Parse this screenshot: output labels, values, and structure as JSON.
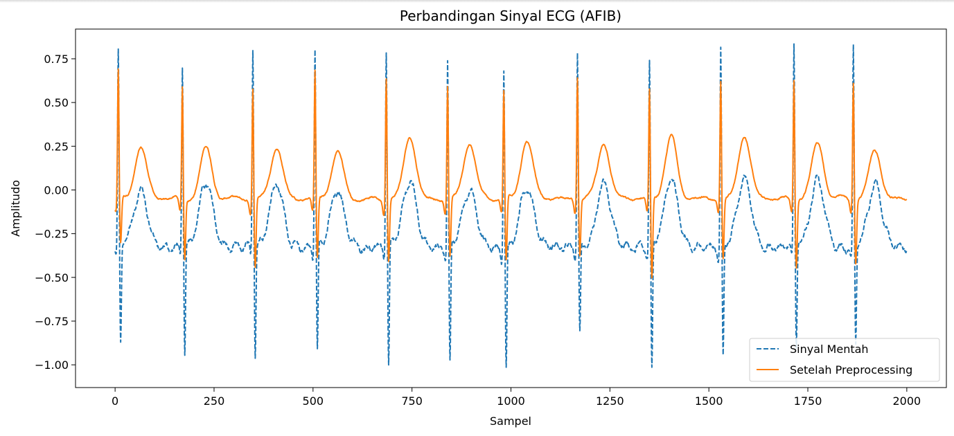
{
  "chart_data": {
    "type": "line",
    "title": "Perbandingan Sinyal ECG (AFIB)",
    "xlabel": "Sampel",
    "ylabel": "Amplitudo",
    "xlim": [
      -100,
      2100
    ],
    "ylim": [
      -1.13,
      0.92
    ],
    "xticks": [
      0,
      250,
      500,
      750,
      1000,
      1250,
      1500,
      1750,
      2000
    ],
    "xtick_labels": [
      "0",
      "250",
      "500",
      "750",
      "1000",
      "1250",
      "1500",
      "1750",
      "2000"
    ],
    "yticks": [
      0.75,
      0.5,
      0.25,
      0.0,
      -0.25,
      -0.5,
      -0.75,
      -1.0
    ],
    "ytick_labels": [
      "0.75",
      "0.50",
      "0.25",
      "0.00",
      "−0.25",
      "−0.50",
      "−0.75",
      "−1.00"
    ],
    "grid": false,
    "legend_position": "lower-right",
    "beats": [
      {
        "x": 8,
        "raw_peak": 0.79,
        "raw_min": -0.87,
        "clean_peak": 0.7,
        "clean_min": -0.32
      },
      {
        "x": 170,
        "raw_peak": 0.72,
        "raw_min": -0.92,
        "clean_peak": 0.61,
        "clean_min": -0.4
      },
      {
        "x": 348,
        "raw_peak": 0.8,
        "raw_min": -0.93,
        "clean_peak": 0.6,
        "clean_min": -0.45
      },
      {
        "x": 505,
        "raw_peak": 0.82,
        "raw_min": -0.9,
        "clean_peak": 0.69,
        "clean_min": -0.4
      },
      {
        "x": 685,
        "raw_peak": 0.79,
        "raw_min": -1.02,
        "clean_peak": 0.68,
        "clean_min": -0.4
      },
      {
        "x": 840,
        "raw_peak": 0.75,
        "raw_min": -1.0,
        "clean_peak": 0.61,
        "clean_min": -0.39
      },
      {
        "x": 982,
        "raw_peak": 0.73,
        "raw_min": -1.0,
        "clean_peak": 0.58,
        "clean_min": -0.42
      },
      {
        "x": 1168,
        "raw_peak": 0.8,
        "raw_min": -0.8,
        "clean_peak": 0.68,
        "clean_min": -0.37
      },
      {
        "x": 1350,
        "raw_peak": 0.74,
        "raw_min": -1.03,
        "clean_peak": 0.59,
        "clean_min": -0.52
      },
      {
        "x": 1530,
        "raw_peak": 0.83,
        "raw_min": -0.94,
        "clean_peak": 0.64,
        "clean_min": -0.39
      },
      {
        "x": 1715,
        "raw_peak": 0.82,
        "raw_min": -0.87,
        "clean_peak": 0.65,
        "clean_min": -0.44
      },
      {
        "x": 1865,
        "raw_peak": 0.83,
        "raw_min": -0.87,
        "clean_peak": 0.64,
        "clean_min": -0.42
      }
    ],
    "t_waves": [
      {
        "x": 65,
        "raw": -0.01,
        "clean": 0.24
      },
      {
        "x": 230,
        "raw": 0.03,
        "clean": 0.24
      },
      {
        "x": 408,
        "raw": 0.03,
        "clean": 0.25
      },
      {
        "x": 562,
        "raw": -0.02,
        "clean": 0.22
      },
      {
        "x": 745,
        "raw": 0.04,
        "clean": 0.31
      },
      {
        "x": 895,
        "raw": -0.01,
        "clean": 0.27
      },
      {
        "x": 1040,
        "raw": 0.01,
        "clean": 0.28
      },
      {
        "x": 1235,
        "raw": 0.01,
        "clean": 0.27
      },
      {
        "x": 1405,
        "raw": 0.05,
        "clean": 0.3
      },
      {
        "x": 1590,
        "raw": 0.07,
        "clean": 0.31
      },
      {
        "x": 1775,
        "raw": 0.05,
        "clean": 0.27
      },
      {
        "x": 1920,
        "raw": 0.03,
        "clean": 0.23
      }
    ],
    "x_end": 2000,
    "series": [
      {
        "name": "Sinyal Mentah",
        "color": "#1f77b4",
        "style": "dashed",
        "baseline": -0.32
      },
      {
        "name": "Setelah Preprocessing",
        "color": "#ff7f0e",
        "style": "solid",
        "baseline": -0.05
      }
    ]
  }
}
